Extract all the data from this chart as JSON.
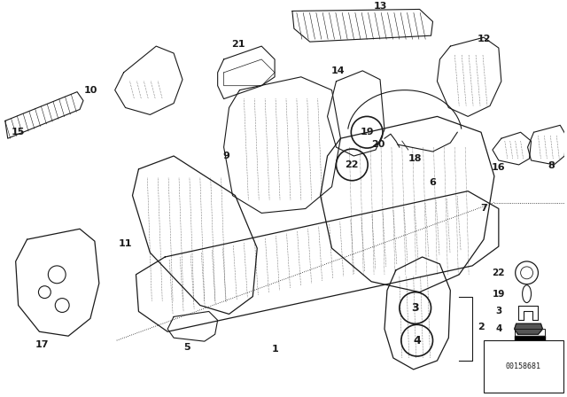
{
  "bg_color": "#ffffff",
  "line_color": "#1a1a1a",
  "fig_width": 6.4,
  "fig_height": 4.48,
  "dpi": 100,
  "part_number_text": "00158681",
  "title_fontsize": 8
}
